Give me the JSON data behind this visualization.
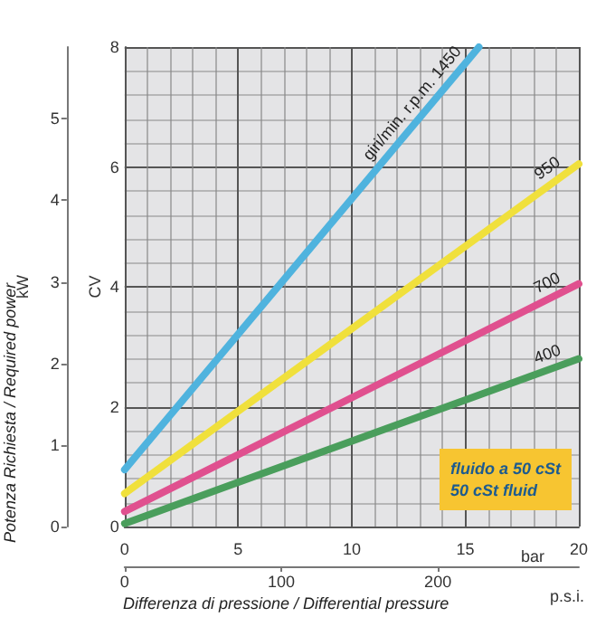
{
  "chart_data": {
    "type": "line",
    "xlabel": "bar",
    "ylabel": "CV",
    "y2label": "kW",
    "x2label": "p.s.i.",
    "x": [
      0,
      20
    ],
    "xlim": [
      0,
      20
    ],
    "xticks": [
      0,
      5,
      10,
      15,
      20
    ],
    "x2lim": [
      0,
      290
    ],
    "x2ticks": [
      0,
      100,
      200
    ],
    "ylim": [
      0,
      8
    ],
    "yticks": [
      0,
      2,
      4,
      6,
      8
    ],
    "y2lim": [
      0,
      5.88
    ],
    "y2ticks": [
      0,
      1,
      2,
      3,
      4,
      5
    ],
    "series": [
      {
        "name": "giri/min. r.p.m. 1450",
        "color": "#4fb3de",
        "x": [
          0,
          15.6
        ],
        "values": [
          0.95,
          8
        ]
      },
      {
        "name": "950",
        "color": "#f0e03c",
        "values": [
          0.55,
          6.05
        ]
      },
      {
        "name": "700",
        "color": "#e0508f",
        "values": [
          0.25,
          4.05
        ]
      },
      {
        "name": "400",
        "color": "#4a9e5c",
        "values": [
          0.05,
          2.8
        ]
      }
    ],
    "annotations": [
      "Differenza di pressione / Differential pressure",
      "Potenza Richiesta / Required power",
      "fluido a 50 cSt",
      "50 cSt fluid"
    ],
    "grid": true,
    "legend": false,
    "marker": "none",
    "line_style": "solid"
  }
}
